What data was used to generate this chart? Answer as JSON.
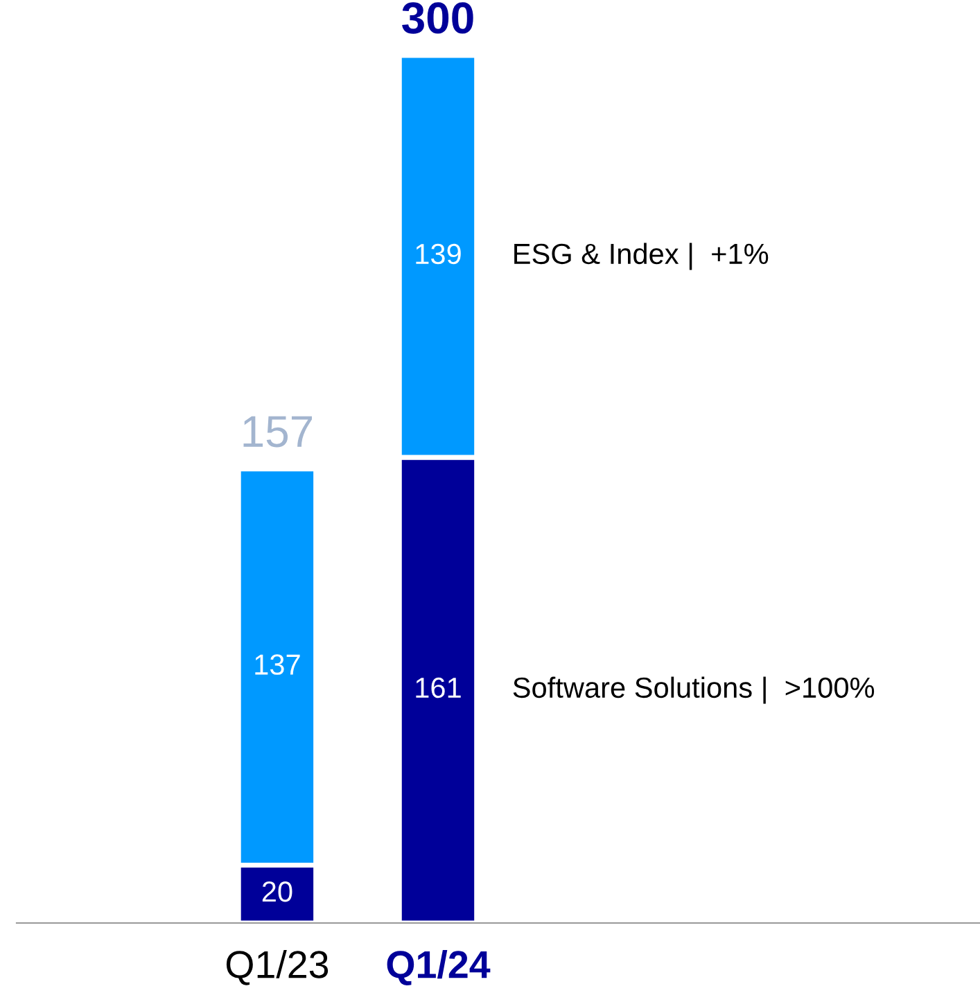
{
  "chart_data": {
    "type": "bar",
    "stacked": true,
    "categories": [
      "Q1/23",
      "Q1/24"
    ],
    "series": [
      {
        "name": "Software Solutions |  >100%",
        "color": "#000099",
        "values": [
          20,
          161
        ]
      },
      {
        "name": "ESG & Index |  +1%",
        "color": "#0099ff",
        "values": [
          137,
          139
        ]
      }
    ],
    "data_labels": true,
    "totals": [
      "157",
      "300"
    ],
    "legend": false,
    "grid": false
  }
}
